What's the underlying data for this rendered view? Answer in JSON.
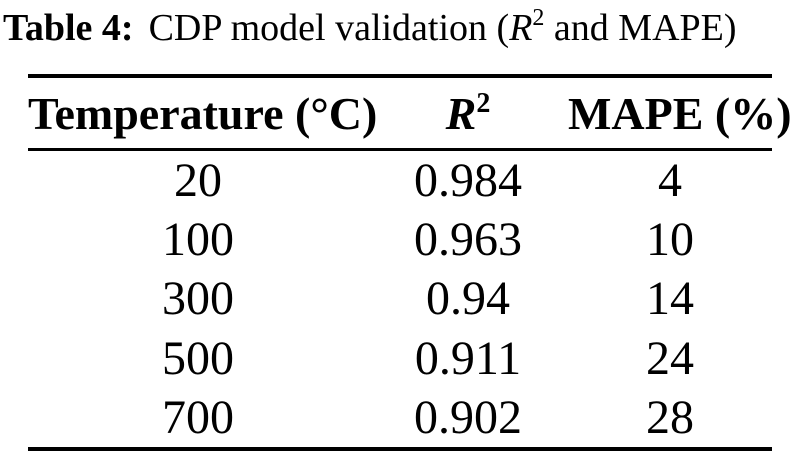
{
  "caption": {
    "label": "Table 4:",
    "pre": "CDP model validation (",
    "r": "R",
    "r_sup": "2",
    "post": " and MAPE)"
  },
  "table": {
    "header": {
      "temperature": "Temperature (°C)",
      "r": "R",
      "r_sup": "2",
      "mape": "MAPE (%)"
    },
    "rows": [
      {
        "temperature": "20",
        "r2": "0.984",
        "mape": "4"
      },
      {
        "temperature": "100",
        "r2": "0.963",
        "mape": "10"
      },
      {
        "temperature": "300",
        "r2": "0.94",
        "mape": "14"
      },
      {
        "temperature": "500",
        "r2": "0.911",
        "mape": "24"
      },
      {
        "temperature": "700",
        "r2": "0.902",
        "mape": "28"
      }
    ]
  },
  "colors": {
    "text": "#000000",
    "rule": "#000000",
    "background": "#ffffff"
  }
}
